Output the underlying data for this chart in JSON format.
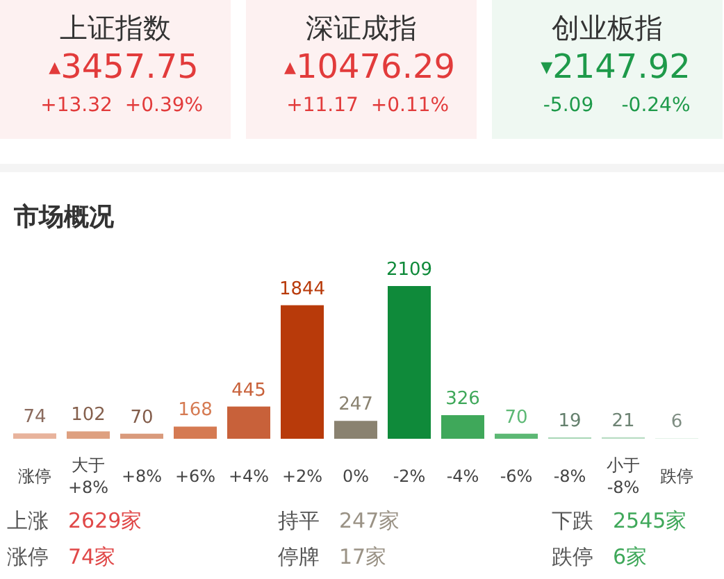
{
  "chart_data": [
    {
      "type": "other",
      "title": "上证指数",
      "annotations": [
        "▲",
        "3457.75",
        "+13.32",
        "+0.39%"
      ],
      "color": "#e23b3b"
    },
    {
      "type": "other",
      "title": "深证成指",
      "annotations": [
        "▲",
        "10476.29",
        "+11.17",
        "+0.11%"
      ],
      "color": "#e23b3b"
    },
    {
      "type": "other",
      "title": "创业板指",
      "annotations": [
        "▼",
        "2147.92",
        "-5.09",
        "-0.24%"
      ],
      "color": "#1e9a4a"
    },
    {
      "type": "bar",
      "title": "市场概况",
      "categories": [
        "涨停",
        "大于\n+8%",
        "+8%",
        "+6%",
        "+4%",
        "+2%",
        "0%",
        "-2%",
        "-4%",
        "-6%",
        "-8%",
        "小于\n-8%",
        "跌停"
      ],
      "data_labels": true,
      "values": [
        74,
        102,
        70,
        168,
        445,
        1844,
        247,
        2109,
        326,
        70,
        19,
        21,
        6
      ],
      "colors": [
        "#e8b39c",
        "#dea080",
        "#d99a7c",
        "#d57a52",
        "#c8613a",
        "#b83a0a",
        "#8a8270",
        "#0f8a3a",
        "#3fa85a",
        "#5cb874",
        "#a7d6b5",
        "#b7dcc2",
        "#d2ebd9"
      ],
      "annotations": [
        "上涨",
        "2629家",
        "持平",
        "247家",
        "下跌",
        "2545家",
        "涨停",
        "74家",
        "停牌",
        "17家",
        "跌停",
        "6家"
      ]
    }
  ]
}
